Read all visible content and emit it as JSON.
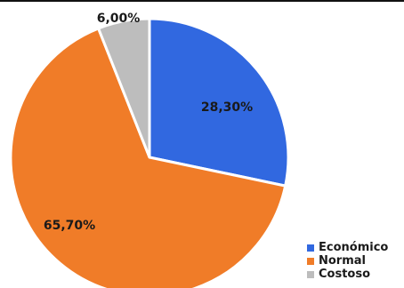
{
  "chart_data": {
    "type": "pie",
    "slices": [
      {
        "label": "Económico",
        "value": 28.3,
        "display": "28,30%",
        "color": "#3168e0"
      },
      {
        "label": "Normal",
        "value": 65.7,
        "display": "65,70%",
        "color": "#f07c28"
      },
      {
        "label": "Costoso",
        "value": 6.0,
        "display": "6,00%",
        "color": "#bdbdbd"
      }
    ],
    "start_angle_deg": 0,
    "direction": "clockwise",
    "legend": {
      "placement": "bottom-right",
      "items": [
        "Económico",
        "Normal",
        "Costoso"
      ]
    }
  }
}
